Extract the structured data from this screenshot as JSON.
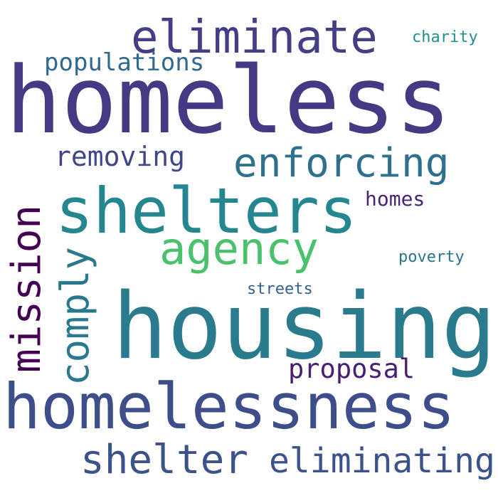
{
  "words": [
    {
      "text": "homeless",
      "color": "#443a83"
    },
    {
      "text": "housing",
      "color": "#2b7b8e"
    },
    {
      "text": "homelessness",
      "color": "#3d4e8a"
    },
    {
      "text": "shelters",
      "color": "#24868e"
    },
    {
      "text": "eliminate",
      "color": "#433e85"
    },
    {
      "text": "agency",
      "color": "#4ac16d"
    },
    {
      "text": "enforcing",
      "color": "#2d718e"
    },
    {
      "text": "mission",
      "color": "#440154"
    },
    {
      "text": "comply",
      "color": "#2a788e"
    },
    {
      "text": "shelter",
      "color": "#3b528b"
    },
    {
      "text": "eliminating",
      "color": "#3b528b"
    },
    {
      "text": "removing",
      "color": "#3f4788"
    },
    {
      "text": "populations",
      "color": "#31688e"
    },
    {
      "text": "proposal",
      "color": "#481f70"
    },
    {
      "text": "homes",
      "color": "#482475"
    },
    {
      "text": "charity",
      "color": "#21918c"
    },
    {
      "text": "poverty",
      "color": "#2c728e"
    },
    {
      "text": "streets",
      "color": "#355f8d"
    }
  ]
}
